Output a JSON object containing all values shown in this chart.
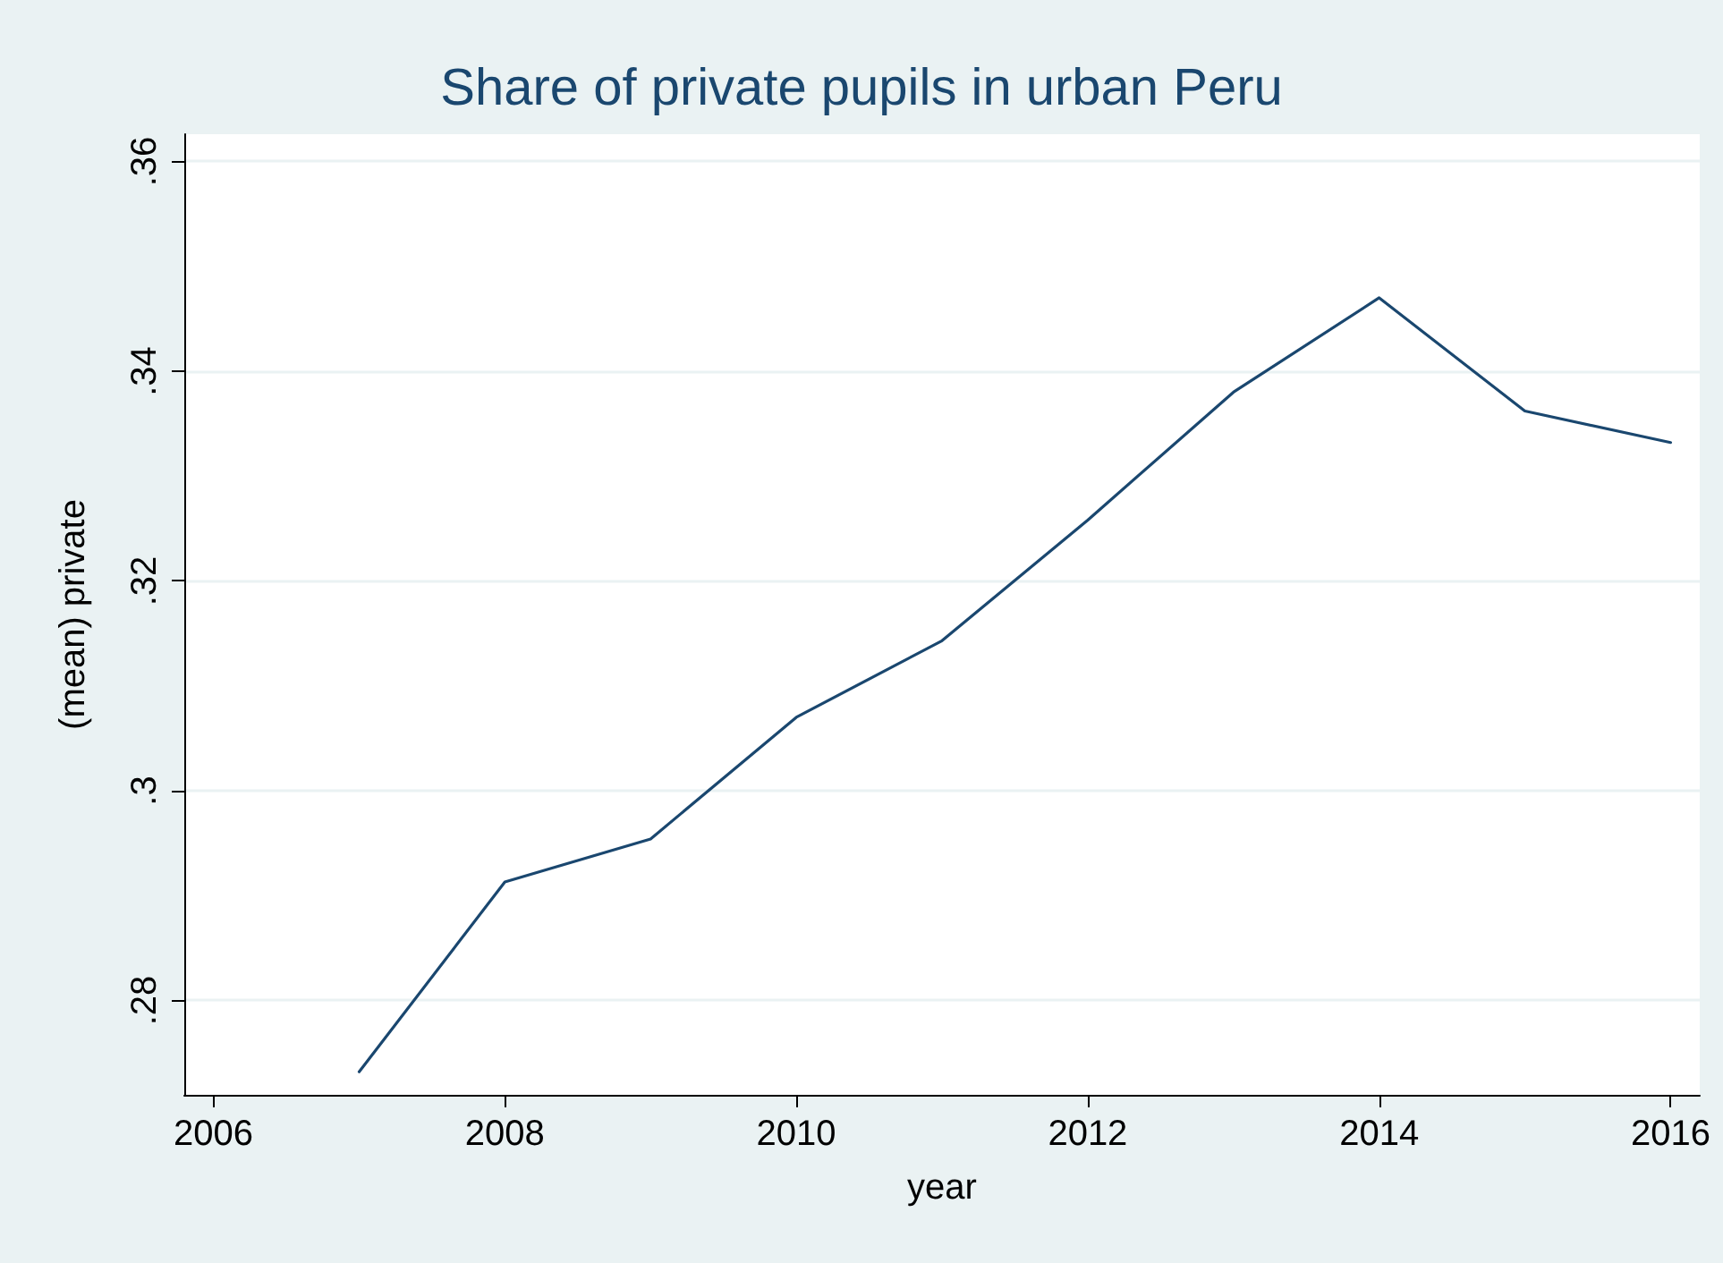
{
  "chart_data": {
    "type": "line",
    "title": "Share of private pupils in urban Peru",
    "xlabel": "year",
    "ylabel": "(mean) private",
    "x": [
      2007,
      2008,
      2009,
      2010,
      2011,
      2012,
      2013,
      2014,
      2015,
      2016
    ],
    "series": [
      {
        "color": "#1a476f",
        "values": [
          0.2732,
          0.2913,
          0.2954,
          0.307,
          0.3143,
          0.3258,
          0.338,
          0.347,
          0.3362,
          0.3332
        ]
      }
    ],
    "xlim": [
      2005.8,
      2016.2
    ],
    "xticks": [
      2006,
      2008,
      2010,
      2012,
      2014,
      2016
    ],
    "ylim": [
      0.271,
      0.3626
    ],
    "yticks": [
      {
        "value": 0.28,
        "label": ".28"
      },
      {
        "value": 0.3,
        "label": ".3"
      },
      {
        "value": 0.32,
        "label": ".32"
      },
      {
        "value": 0.34,
        "label": ".34"
      },
      {
        "value": 0.36,
        "label": ".36"
      }
    ],
    "grid": "y",
    "marker": "none",
    "line_style": "solid"
  }
}
